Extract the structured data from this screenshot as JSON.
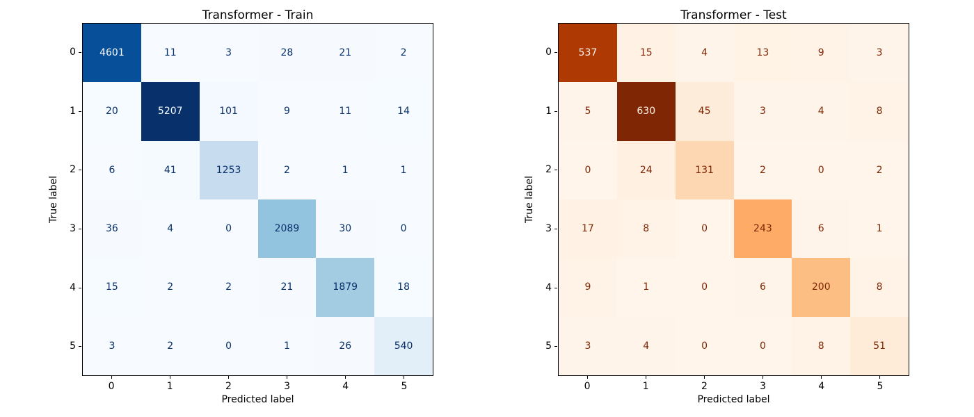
{
  "colors": {
    "background": "#ffffff",
    "axis_spine": "#000000",
    "blues_dark_text": "#08306b",
    "blues_light_text": "#f7fbff",
    "oranges_dark_text": "#7f2704",
    "oranges_light_text": "#fff5eb"
  },
  "colormaps": {
    "Blues": [
      "#f7fbff",
      "#deebf7",
      "#c6dbef",
      "#9ecae1",
      "#6baed6",
      "#4292c6",
      "#2171b5",
      "#08519c",
      "#08306b"
    ],
    "Oranges": [
      "#fff5eb",
      "#fee6ce",
      "#fdd0a2",
      "#fdae6b",
      "#fd8d3c",
      "#f16913",
      "#d94801",
      "#a63603",
      "#7f2704"
    ]
  },
  "chart_data": [
    {
      "type": "heatmap",
      "title": "Transformer - Train",
      "xlabel": "Predicted label",
      "ylabel": "True label",
      "colormap": "Blues",
      "x_tick_labels": [
        "0",
        "1",
        "2",
        "3",
        "4",
        "5"
      ],
      "y_tick_labels": [
        "0",
        "1",
        "2",
        "3",
        "4",
        "5"
      ],
      "vmin": 0,
      "vmax": 5207,
      "matrix": [
        [
          4601,
          11,
          3,
          28,
          21,
          2
        ],
        [
          20,
          5207,
          101,
          9,
          11,
          14
        ],
        [
          6,
          41,
          1253,
          2,
          1,
          1
        ],
        [
          36,
          4,
          0,
          2089,
          30,
          0
        ],
        [
          15,
          2,
          2,
          21,
          1879,
          18
        ],
        [
          3,
          2,
          0,
          1,
          26,
          540
        ]
      ]
    },
    {
      "type": "heatmap",
      "title": "Transformer - Test",
      "xlabel": "Predicted label",
      "ylabel": "True label",
      "colormap": "Oranges",
      "x_tick_labels": [
        "0",
        "1",
        "2",
        "3",
        "4",
        "5"
      ],
      "y_tick_labels": [
        "0",
        "1",
        "2",
        "3",
        "4",
        "5"
      ],
      "vmin": 0,
      "vmax": 630,
      "matrix": [
        [
          537,
          15,
          4,
          13,
          9,
          3
        ],
        [
          5,
          630,
          45,
          3,
          4,
          8
        ],
        [
          0,
          24,
          131,
          2,
          0,
          2
        ],
        [
          17,
          8,
          0,
          243,
          6,
          1
        ],
        [
          9,
          1,
          0,
          6,
          200,
          8
        ],
        [
          3,
          4,
          0,
          0,
          8,
          51
        ]
      ]
    }
  ]
}
